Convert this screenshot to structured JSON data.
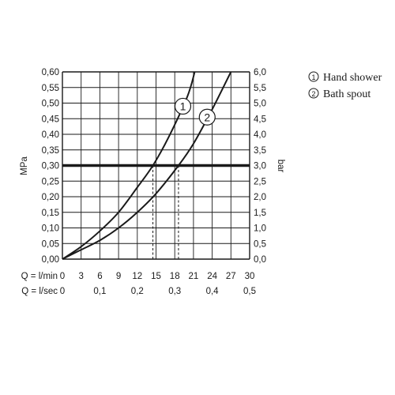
{
  "chart_data": {
    "type": "line",
    "y_left": {
      "label": "MPa",
      "range": [
        0,
        0.6
      ],
      "ticks": [
        "0,00",
        "0,05",
        "0,10",
        "0,15",
        "0,20",
        "0,25",
        "0,30",
        "0,35",
        "0,40",
        "0,45",
        "0,50",
        "0,55",
        "0,60"
      ]
    },
    "y_right": {
      "label": "bar",
      "range": [
        0,
        6
      ],
      "ticks": [
        "0,0",
        "0,5",
        "1,0",
        "1,5",
        "2,0",
        "2,5",
        "3,0",
        "3,5",
        "4,0",
        "4,5",
        "5,0",
        "5,5",
        "6,0"
      ]
    },
    "x_primary": {
      "label": "Q = l/min",
      "range": [
        0,
        30
      ],
      "ticks": [
        "0",
        "3",
        "6",
        "9",
        "12",
        "15",
        "18",
        "21",
        "24",
        "27",
        "30"
      ]
    },
    "x_secondary": {
      "label": "Q = l/sec",
      "ticks": [
        {
          "at": 0,
          "text": "0"
        },
        {
          "at": 6,
          "text": "0,1"
        },
        {
          "at": 12,
          "text": "0,2"
        },
        {
          "at": 18,
          "text": "0,3"
        },
        {
          "at": 24,
          "text": "0,4"
        },
        {
          "at": 30,
          "text": "0,5"
        }
      ]
    },
    "grid": true,
    "reference_line": {
      "y": 0.3
    },
    "series": [
      {
        "marker": "1",
        "name": "Hand shower",
        "x": [
          0,
          3,
          6,
          9,
          12,
          14.5,
          17,
          20,
          21.2
        ],
        "y": [
          0,
          0.04,
          0.09,
          0.15,
          0.23,
          0.3,
          0.39,
          0.52,
          0.6
        ],
        "marker_at": [
          19.3,
          0.49
        ],
        "drop_at": 14.5
      },
      {
        "marker": "2",
        "name": "Bath spout",
        "x": [
          0,
          3,
          6,
          9,
          12,
          15,
          18.6,
          21,
          24,
          27
        ],
        "y": [
          0,
          0.03,
          0.06,
          0.1,
          0.15,
          0.21,
          0.3,
          0.37,
          0.48,
          0.6
        ],
        "marker_at": [
          23.2,
          0.455
        ],
        "drop_at": 18.6
      }
    ]
  },
  "legend": [
    {
      "marker": "1",
      "label": "Hand shower"
    },
    {
      "marker": "2",
      "label": "Bath spout"
    }
  ]
}
